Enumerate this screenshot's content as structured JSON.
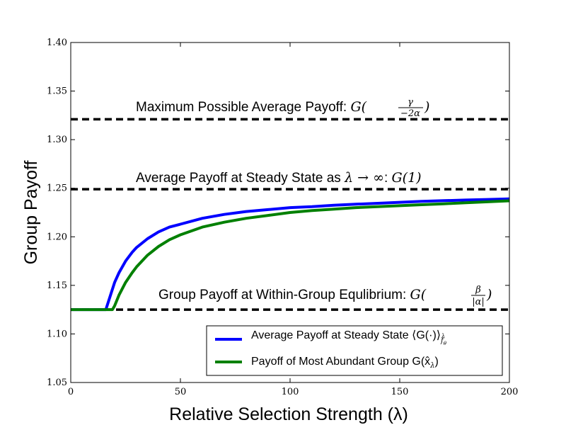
{
  "chart_data": {
    "type": "line",
    "title": "",
    "xlabel": "Relative Selection Strength (λ)",
    "ylabel": "Group Payoff",
    "xlim": [
      0,
      200
    ],
    "ylim": [
      1.05,
      1.4
    ],
    "xticks": [
      "0",
      "50",
      "100",
      "150",
      "200"
    ],
    "yticks": [
      "1.05",
      "1.10",
      "1.15",
      "1.20",
      "1.25",
      "1.30",
      "1.35",
      "1.40"
    ],
    "grid": false,
    "legend_position": "lower-right",
    "series": [
      {
        "name": "Average Payoff at Steady State ⟨G(·)⟩",
        "name_sub": "f",
        "name_sub2": "θ",
        "name_sup": "λ",
        "color": "#0000ff",
        "x": [
          0,
          10,
          16,
          18,
          20,
          22,
          25,
          28,
          30,
          35,
          40,
          45,
          50,
          60,
          70,
          80,
          90,
          100,
          110,
          120,
          130,
          140,
          150,
          160,
          170,
          180,
          190,
          200
        ],
        "y": [
          1.125,
          1.125,
          1.125,
          1.139,
          1.153,
          1.163,
          1.175,
          1.184,
          1.189,
          1.198,
          1.205,
          1.21,
          1.213,
          1.219,
          1.223,
          1.226,
          1.228,
          1.23,
          1.231,
          1.2325,
          1.2335,
          1.2345,
          1.2355,
          1.2365,
          1.2372,
          1.2378,
          1.2384,
          1.239
        ]
      },
      {
        "name": "Payoff of Most Abundant Group G(x̂",
        "name_sub": "λ",
        "name_close": ")",
        "color": "#008000",
        "x": [
          0,
          10,
          19,
          20,
          22,
          25,
          28,
          30,
          35,
          40,
          45,
          50,
          60,
          70,
          80,
          90,
          100,
          110,
          120,
          130,
          140,
          150,
          160,
          170,
          180,
          190,
          200
        ],
        "y": [
          1.125,
          1.125,
          1.125,
          1.129,
          1.14,
          1.153,
          1.163,
          1.169,
          1.181,
          1.19,
          1.197,
          1.202,
          1.21,
          1.215,
          1.219,
          1.222,
          1.225,
          1.227,
          1.2285,
          1.23,
          1.231,
          1.232,
          1.233,
          1.234,
          1.235,
          1.236,
          1.237
        ]
      }
    ],
    "reference_lines": [
      {
        "y": 1.321,
        "label": "Maximum Possible Average Payoff: ",
        "math_prefix": "G(",
        "frac_num": "γ",
        "frac_den": "−2α",
        "math_suffix": ")"
      },
      {
        "y": 1.249,
        "label": "Average Payoff at Steady State as ",
        "math_expr": "λ → ∞",
        "label_mid": ": ",
        "math_tail": "G(1)"
      },
      {
        "y": 1.125,
        "label": "Group Payoff at Within-Group Equlibrium: ",
        "math_prefix": "G(",
        "frac_num": "β",
        "frac_den": "|α|",
        "math_suffix": ")"
      }
    ]
  }
}
